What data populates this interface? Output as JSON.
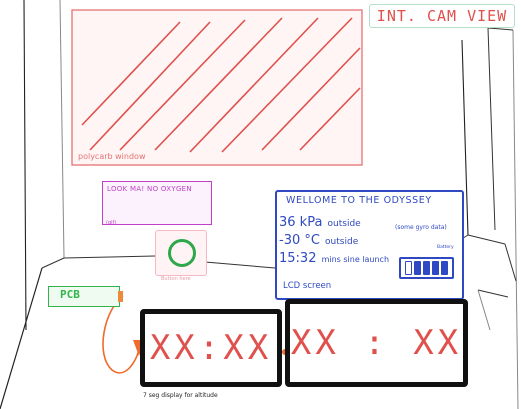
{
  "view_title": "INT. CAM VIEW",
  "polycarb_window": {
    "label": "polycarb window"
  },
  "sticker_panel": {
    "text": "LOOK MA! NO OXYGEN",
    "small_text": "(gif)"
  },
  "action_button": {
    "label": "Button here"
  },
  "pcb": {
    "label": "PCB"
  },
  "lcd": {
    "welcome": "WELLOME TO THE ODYSSEY",
    "pressure_value": "36 kPa",
    "pressure_suffix": "outside",
    "temp_value": "-30 °C",
    "temp_suffix": "outside",
    "time_value": "15:32",
    "time_suffix": "mins sine launch",
    "side_note": "(some gyro data)",
    "battery_note": "Battery",
    "screen_label": "LCD screen",
    "battery_cells_filled": 4,
    "battery_cells_total": 5
  },
  "seven_seg": {
    "left_display": "XX:XX",
    "right_display": "XX : XX",
    "caption": "7 seg display for altitude"
  },
  "colors": {
    "polycarb": "#e0504c",
    "sticker": "#c040c8",
    "button_ring": "#2ea84a",
    "pcb": "#33b449",
    "lcd": "#2f49c2",
    "wire": "#ef6a2c",
    "segment_digits": "#e0504c"
  }
}
